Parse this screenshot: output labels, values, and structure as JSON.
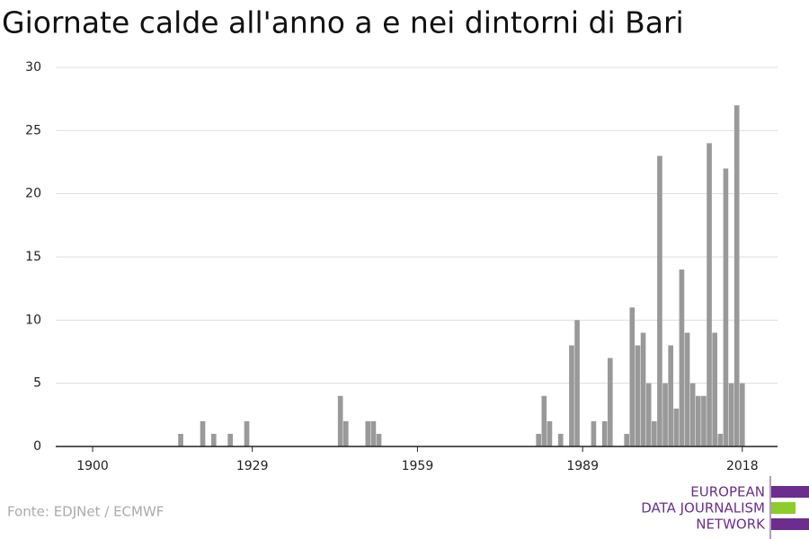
{
  "chart_data": {
    "type": "bar",
    "title": "Giornate calde all'anno a e nei dintorni di Bari",
    "x": [
      1916,
      1920,
      1922,
      1925,
      1928,
      1945,
      1946,
      1950,
      1951,
      1952,
      1981,
      1982,
      1983,
      1985,
      1987,
      1988,
      1991,
      1993,
      1994,
      1997,
      1998,
      1999,
      2000,
      2001,
      2002,
      2003,
      2004,
      2005,
      2006,
      2007,
      2008,
      2009,
      2010,
      2011,
      2012,
      2013,
      2014,
      2015,
      2016,
      2017,
      2018
    ],
    "values": [
      1,
      2,
      1,
      1,
      2,
      4,
      2,
      2,
      2,
      1,
      1,
      4,
      2,
      1,
      8,
      10,
      2,
      2,
      7,
      1,
      11,
      8,
      9,
      5,
      2,
      23,
      5,
      8,
      3,
      14,
      9,
      5,
      4,
      4,
      24,
      9,
      1,
      22,
      5,
      27,
      5
    ],
    "color": "#999999",
    "xlim": [
      1893.3,
      2024.4
    ],
    "xticks": [
      1900,
      1929,
      1959,
      1989,
      2018
    ],
    "ylim": [
      0,
      30
    ],
    "yticks": [
      0,
      5,
      10,
      15,
      20,
      25,
      30
    ],
    "grid": true
  },
  "source": "Fonte: EDJNet / ECMWF",
  "logo": [
    "EUROPEAN",
    "DATA JOURNALISM",
    "NETWORK"
  ]
}
